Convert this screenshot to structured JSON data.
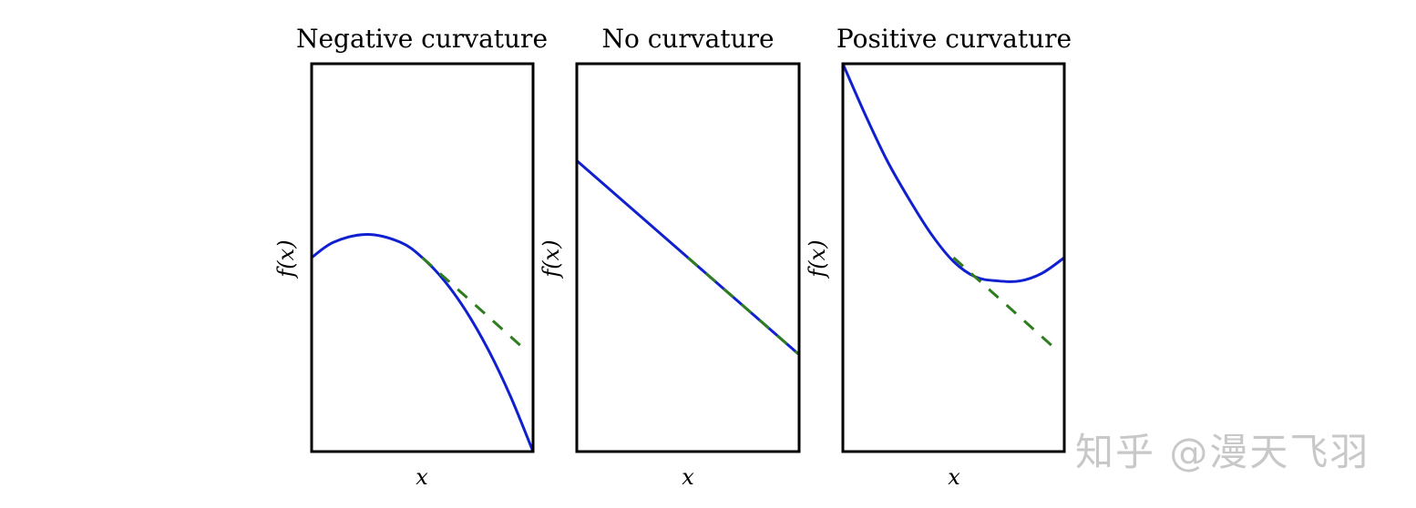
{
  "figure": {
    "watermark": "知乎 @漫天飞羽",
    "colors": {
      "curve": "#1020d0",
      "tangent": "#2e7d1e",
      "axes": "#000000"
    }
  },
  "panels": [
    {
      "title": "Negative curvature",
      "xlabel": "x",
      "ylabel": "f(x)"
    },
    {
      "title": "No curvature",
      "xlabel": "x",
      "ylabel": "f(x)"
    },
    {
      "title": "Positive curvature",
      "xlabel": "x",
      "ylabel": "f(x)"
    }
  ],
  "chart_data": [
    {
      "type": "line",
      "title": "Negative curvature",
      "xlabel": "x",
      "ylabel": "f(x)",
      "xlim": [
        0,
        1
      ],
      "ylim": [
        0,
        1
      ],
      "grid": false,
      "series": [
        {
          "name": "f(x)",
          "style": "solid",
          "color": "#1020d0",
          "x": [
            0,
            0.1,
            0.25,
            0.4,
            0.5,
            0.6,
            0.7,
            0.8,
            0.9,
            1.0
          ],
          "y": [
            0.5,
            0.54,
            0.56,
            0.54,
            0.5,
            0.44,
            0.36,
            0.26,
            0.14,
            0.0
          ]
        },
        {
          "name": "tangent",
          "style": "dashed",
          "color": "#2e7d1e",
          "x": [
            0.5,
            0.95
          ],
          "y": [
            0.5,
            0.27
          ]
        }
      ]
    },
    {
      "type": "line",
      "title": "No curvature",
      "xlabel": "x",
      "ylabel": "f(x)",
      "xlim": [
        0,
        1
      ],
      "ylim": [
        0,
        1
      ],
      "grid": false,
      "series": [
        {
          "name": "f(x)",
          "style": "solid",
          "color": "#1020d0",
          "x": [
            0,
            1
          ],
          "y": [
            0.75,
            0.25
          ]
        },
        {
          "name": "tangent",
          "style": "dashed",
          "color": "#2e7d1e",
          "x": [
            0.5,
            1.0
          ],
          "y": [
            0.5,
            0.25
          ]
        }
      ]
    },
    {
      "type": "line",
      "title": "Positive curvature",
      "xlabel": "x",
      "ylabel": "f(x)",
      "xlim": [
        0,
        1
      ],
      "ylim": [
        0,
        1
      ],
      "grid": false,
      "series": [
        {
          "name": "f(x)",
          "style": "solid",
          "color": "#1020d0",
          "x": [
            0,
            0.1,
            0.2,
            0.3,
            0.4,
            0.5,
            0.6,
            0.7,
            0.8,
            0.9,
            1.0
          ],
          "y": [
            1.0,
            0.87,
            0.75,
            0.65,
            0.56,
            0.49,
            0.45,
            0.44,
            0.44,
            0.46,
            0.5
          ]
        },
        {
          "name": "tangent",
          "style": "dashed",
          "color": "#2e7d1e",
          "x": [
            0.5,
            0.95
          ],
          "y": [
            0.5,
            0.27
          ]
        }
      ]
    }
  ]
}
